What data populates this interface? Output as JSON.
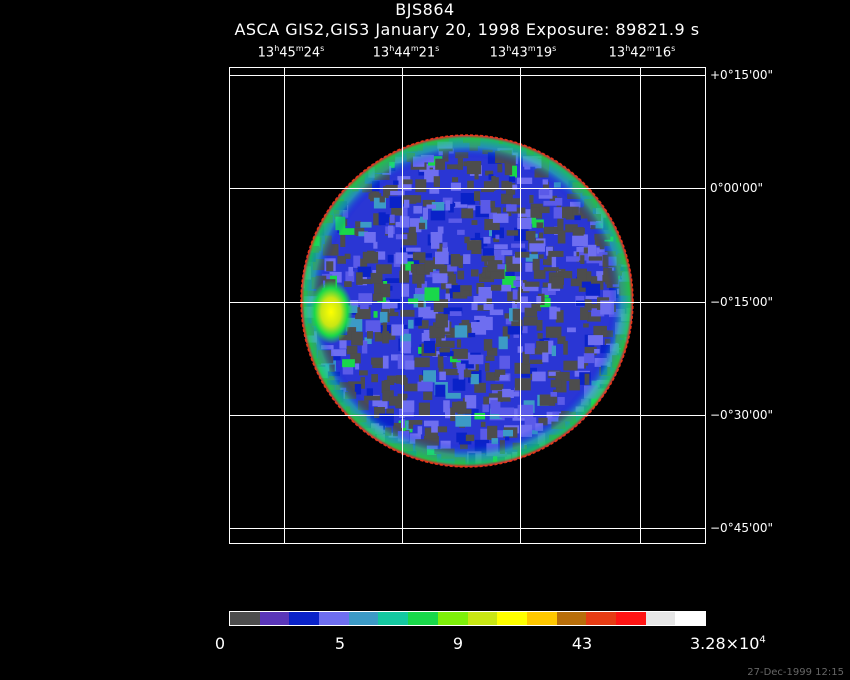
{
  "header": {
    "title": "BJS864",
    "subtitle": "ASCA GIS2,GIS3 January 20, 1998 Exposure: 89821.9 s"
  },
  "ra_labels": [
    {
      "h": "13",
      "m": "45",
      "s": "24"
    },
    {
      "h": "13",
      "m": "44",
      "s": "21"
    },
    {
      "h": "13",
      "m": "43",
      "s": "19"
    },
    {
      "h": "13",
      "m": "42",
      "s": "16"
    }
  ],
  "dec_labels": [
    "+0°15'00\"",
    "0°00'00\"",
    "−0°15'00\"",
    "−0°30'00\"",
    "−0°45'00\""
  ],
  "colorbar": {
    "colors": [
      "#4d4d4d",
      "#5a36b8",
      "#0a22c8",
      "#6e6ef0",
      "#3c9ac6",
      "#14c8a0",
      "#19d84a",
      "#7ef00a",
      "#c8e614",
      "#ffff00",
      "#ffc800",
      "#b86e0a",
      "#e63c14",
      "#ff1414",
      "#e6e6e6",
      "#ffffff"
    ],
    "labels": [
      "0",
      "5",
      "9",
      "43"
    ],
    "max_mantissa": "3.28×10",
    "max_exponent": "4"
  },
  "image": {
    "object": "X-ray intensity map (circular GIS field of view)"
  },
  "footer": {
    "timestamp": "27-Dec-1999 12:15"
  }
}
